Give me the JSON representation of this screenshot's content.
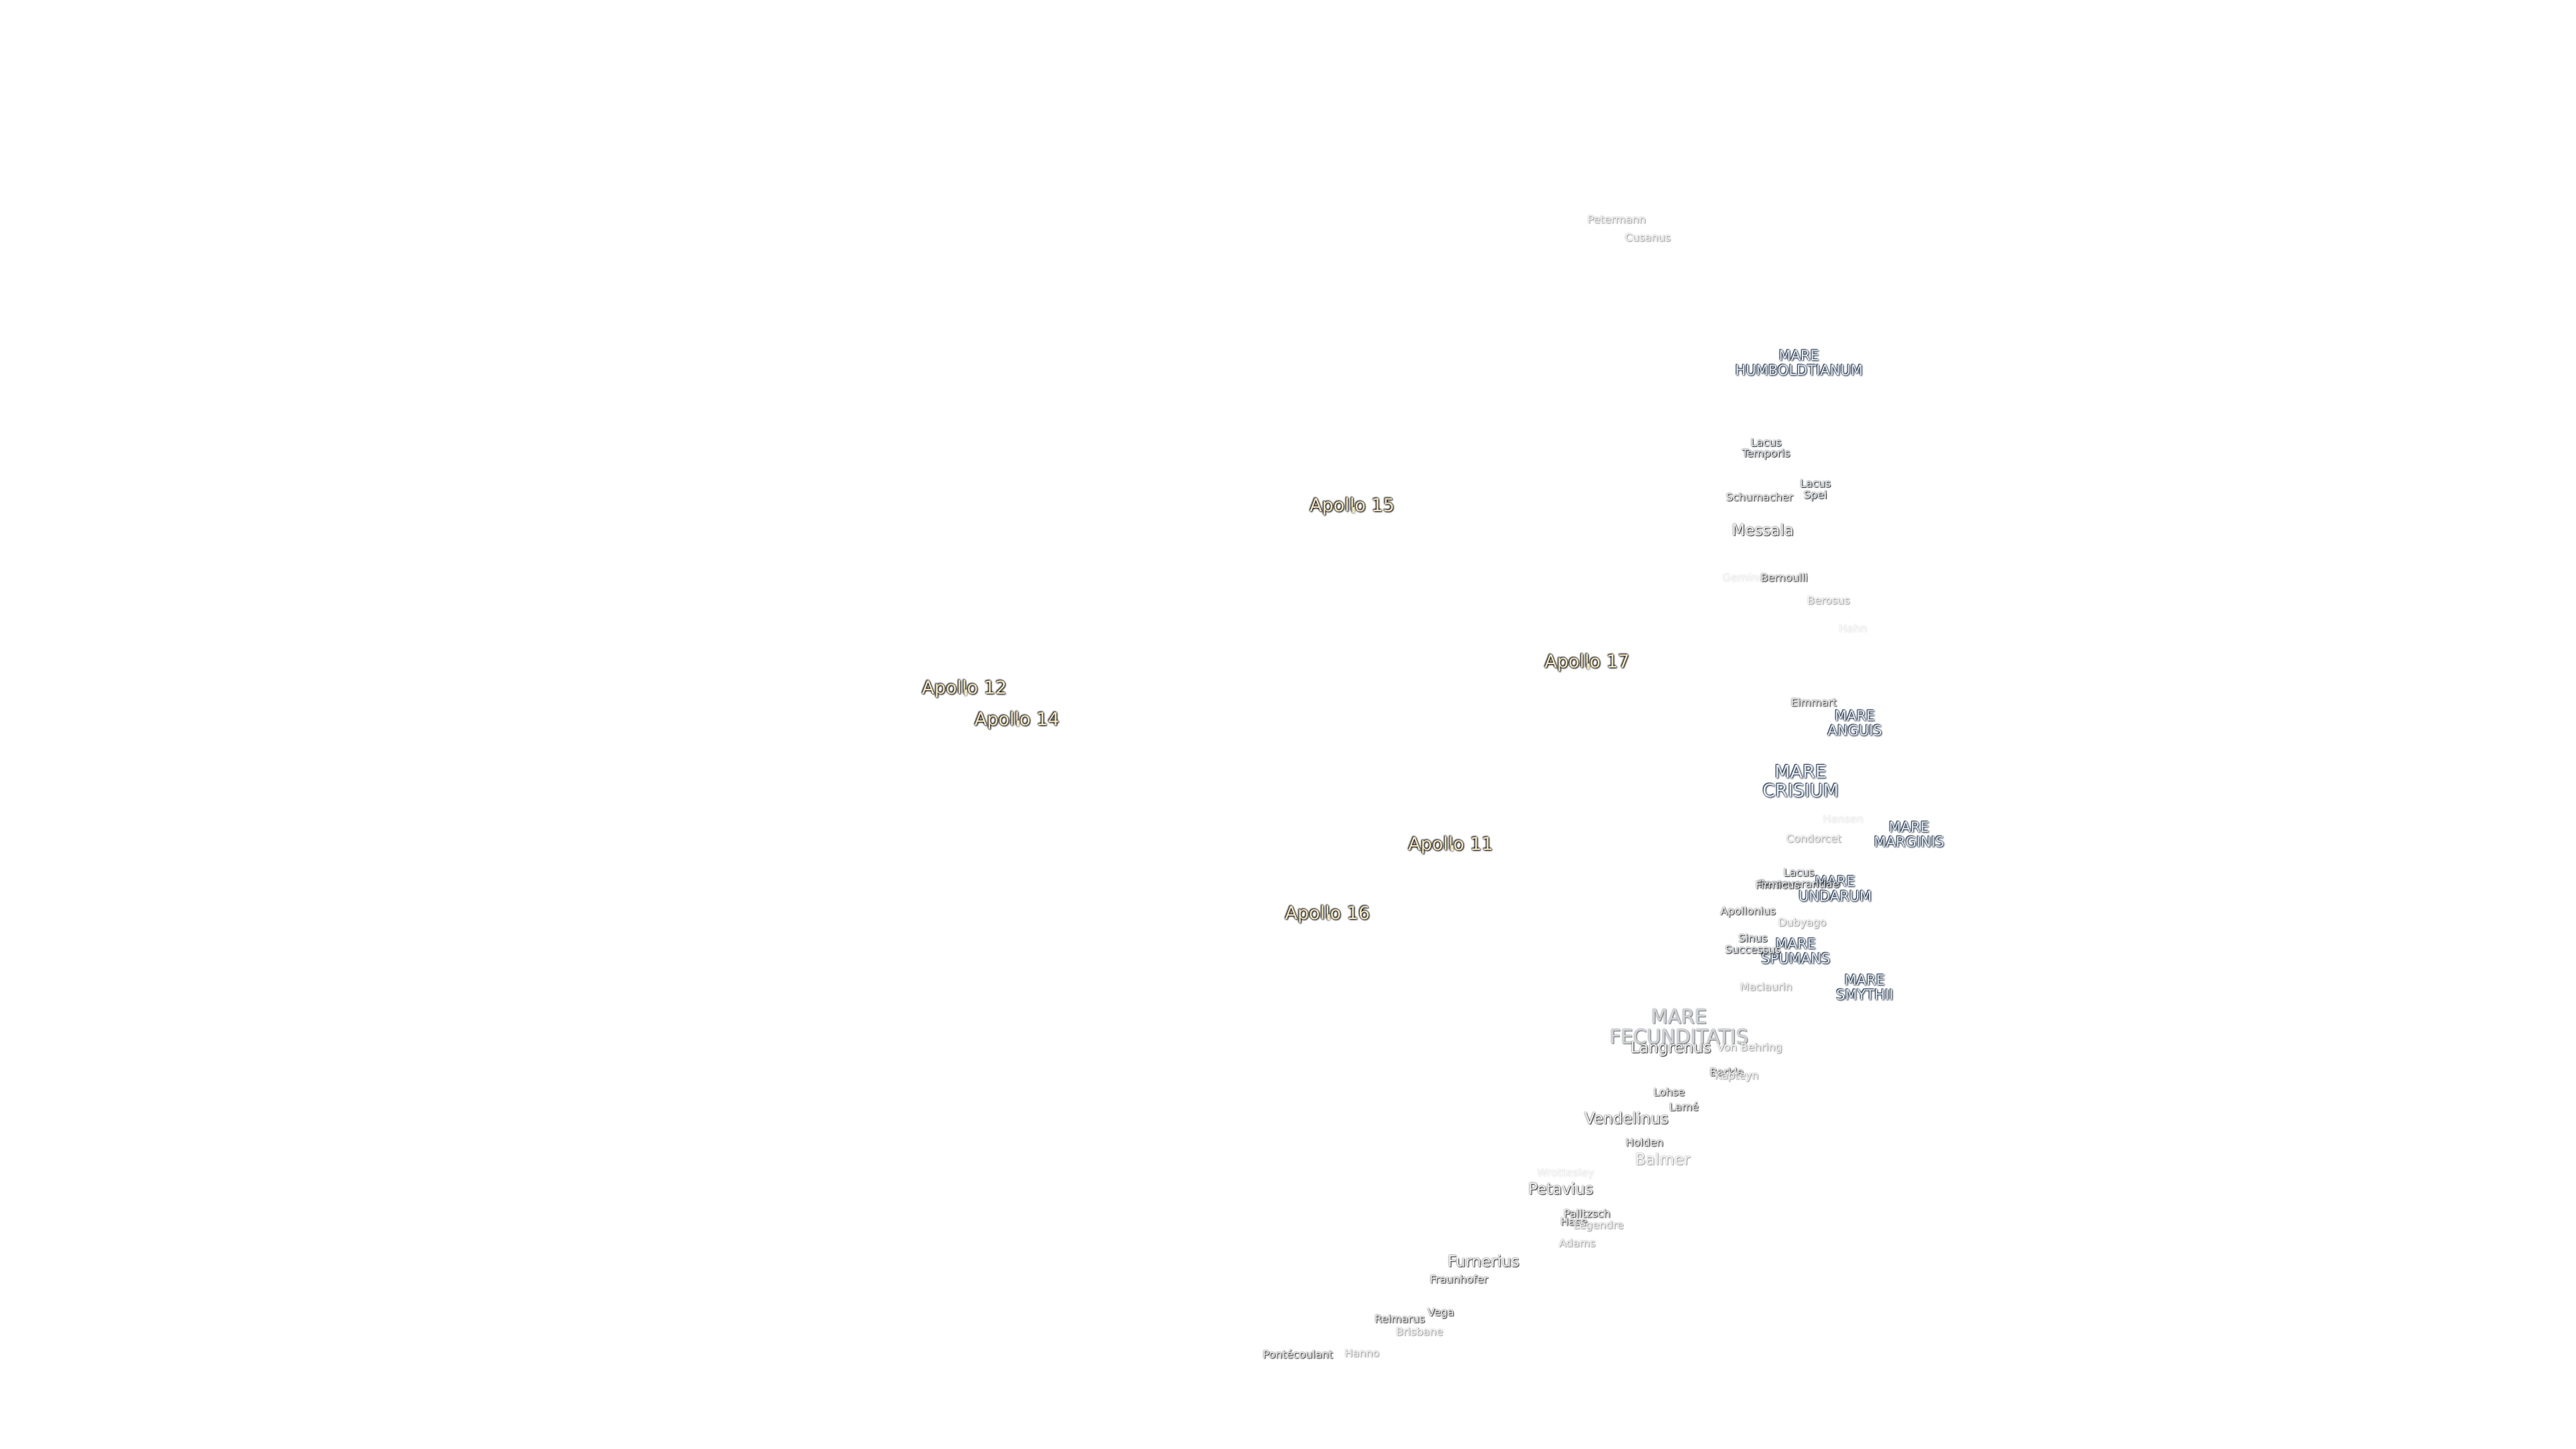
{
  "apollo_sites": [
    "Apollo 15",
    "Apollo 17",
    "Apollo 12",
    "Apollo 14",
    "Apollo 11",
    "Apollo 16"
  ],
  "maria": [
    "MARE HUMBOLDTIANUM",
    "MARE ANGUIS",
    "MARE CRISIUM",
    "MARE MARGINIS",
    "MARE UNDARUM",
    "MARE SPUMANS",
    "MARE SMYTHII",
    "MARE FECUNDITATIS"
  ],
  "lakes": [
    "Lacus Temporis",
    "Lacus Spei",
    "Lacus Perseverantiae",
    "Sinus Successus"
  ],
  "craters": [
    "Petermann",
    "Cusanus",
    "Schumacher",
    "Messala",
    "Geminus",
    "Bernoulli",
    "Berosus",
    "Hahn",
    "Eimmart",
    "Hansen",
    "Condorcet",
    "Firmicus",
    "Apollonius",
    "Dubyago",
    "Maclaurin",
    "Langrenus",
    "Von Behring",
    "Barkla",
    "Kapteyn",
    "Lohse",
    "Lamé",
    "Vendelinus",
    "Holden",
    "Balmer",
    "Wrottesley",
    "Petavius",
    "Palitzsch",
    "Hase",
    "Legendre",
    "Adams",
    "Furnerius",
    "Fraunhofer",
    "Vega",
    "Reimarus",
    "Brisbane",
    "Pontécoulant",
    "Hanno"
  ]
}
